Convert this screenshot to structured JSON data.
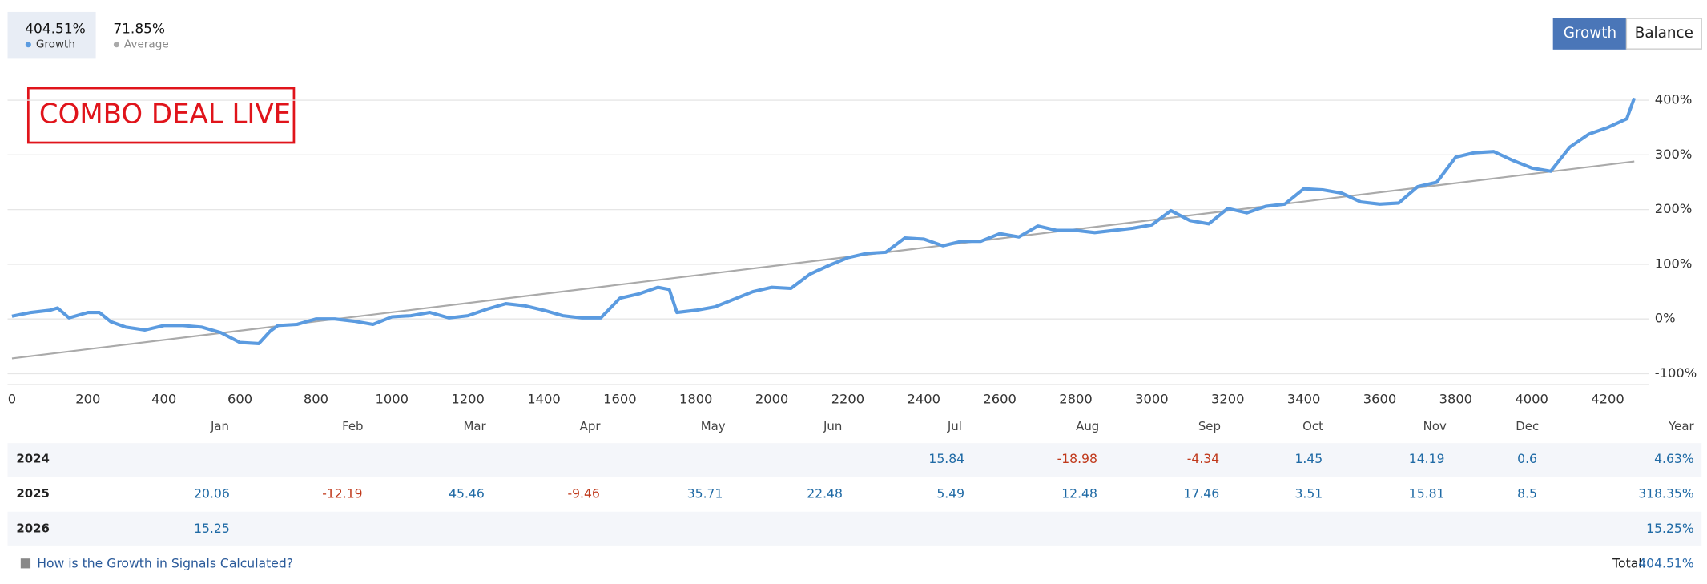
{
  "header": {
    "stats": [
      {
        "value": "404.51%",
        "series": 0
      },
      {
        "value": "71.85%",
        "series": 1
      }
    ],
    "buttons": [
      "Growth",
      "Balance"
    ]
  },
  "chart_data": {
    "type": "line",
    "annotation": "COMBO DEAL LIVE",
    "xlim": [
      0,
      4300
    ],
    "xticks": [
      0,
      200,
      400,
      600,
      800,
      1000,
      1200,
      1400,
      1600,
      1800,
      2000,
      2200,
      2400,
      2600,
      2800,
      3000,
      3200,
      3400,
      3600,
      3800,
      4000,
      4200
    ],
    "ylim": [
      -120,
      420
    ],
    "yticks": [
      {
        "value": -100,
        "label": "-100%"
      },
      {
        "value": 0,
        "label": "0%"
      },
      {
        "value": 100,
        "label": "100%"
      },
      {
        "value": 200,
        "label": "200%"
      },
      {
        "value": 300,
        "label": "300%"
      },
      {
        "value": 400,
        "label": "400%"
      }
    ],
    "grid": true,
    "series": [
      {
        "name": "Growth",
        "color": "#5b9be0",
        "x": [
          0,
          50,
          100,
          120,
          150,
          200,
          230,
          260,
          300,
          350,
          400,
          450,
          500,
          550,
          600,
          650,
          680,
          700,
          750,
          800,
          850,
          900,
          950,
          1000,
          1050,
          1100,
          1150,
          1200,
          1250,
          1300,
          1350,
          1400,
          1450,
          1500,
          1550,
          1600,
          1650,
          1700,
          1730,
          1750,
          1800,
          1850,
          1900,
          1950,
          2000,
          2050,
          2100,
          2150,
          2200,
          2250,
          2300,
          2350,
          2400,
          2450,
          2500,
          2550,
          2600,
          2650,
          2700,
          2750,
          2800,
          2850,
          2900,
          2950,
          3000,
          3050,
          3100,
          3150,
          3200,
          3250,
          3300,
          3350,
          3400,
          3450,
          3500,
          3550,
          3600,
          3650,
          3700,
          3750,
          3800,
          3850,
          3900,
          3950,
          4000,
          4050,
          4100,
          4150,
          4200,
          4250,
          4270
        ],
        "values": [
          5,
          12,
          16,
          20,
          2,
          12,
          12,
          -5,
          -15,
          -20,
          -12,
          -12,
          -15,
          -25,
          -43,
          -45,
          -22,
          -12,
          -10,
          0,
          0,
          -4,
          -10,
          4,
          6,
          12,
          2,
          6,
          18,
          28,
          24,
          16,
          6,
          2,
          2,
          38,
          46,
          58,
          54,
          12,
          16,
          22,
          36,
          50,
          58,
          56,
          82,
          98,
          112,
          120,
          122,
          148,
          146,
          134,
          142,
          142,
          156,
          150,
          170,
          162,
          162,
          158,
          162,
          166,
          172,
          198,
          180,
          174,
          202,
          194,
          206,
          210,
          238,
          236,
          230,
          214,
          210,
          212,
          242,
          250,
          296,
          304,
          306,
          290,
          276,
          270,
          314,
          338,
          350,
          366,
          404
        ]
      },
      {
        "name": "Average",
        "color": "#aaaaaa",
        "x": [
          0,
          4270
        ],
        "values": [
          -72,
          288
        ]
      }
    ]
  },
  "table": {
    "columns": [
      "Jan",
      "Feb",
      "Mar",
      "Apr",
      "May",
      "Jun",
      "Jul",
      "Aug",
      "Sep",
      "Oct",
      "Nov",
      "Dec",
      "Year"
    ],
    "rows": [
      [
        "2024",
        null,
        null,
        null,
        null,
        null,
        null,
        "15.84",
        "-18.98",
        "-4.34",
        "1.45",
        "14.19",
        "0.6",
        "4.63%"
      ],
      [
        "2025",
        "20.06",
        "-12.19",
        "45.46",
        "-9.46",
        "35.71",
        "22.48",
        "5.49",
        "12.48",
        "17.46",
        "3.51",
        "15.81",
        "8.5",
        "318.35%"
      ],
      [
        "2026",
        "15.25",
        null,
        null,
        null,
        null,
        null,
        null,
        null,
        null,
        null,
        null,
        null,
        "15.25%"
      ]
    ]
  },
  "footer": {
    "link": "How is the Growth in Signals Calculated?",
    "total_label": "Total:",
    "total_value": "404.51%"
  }
}
